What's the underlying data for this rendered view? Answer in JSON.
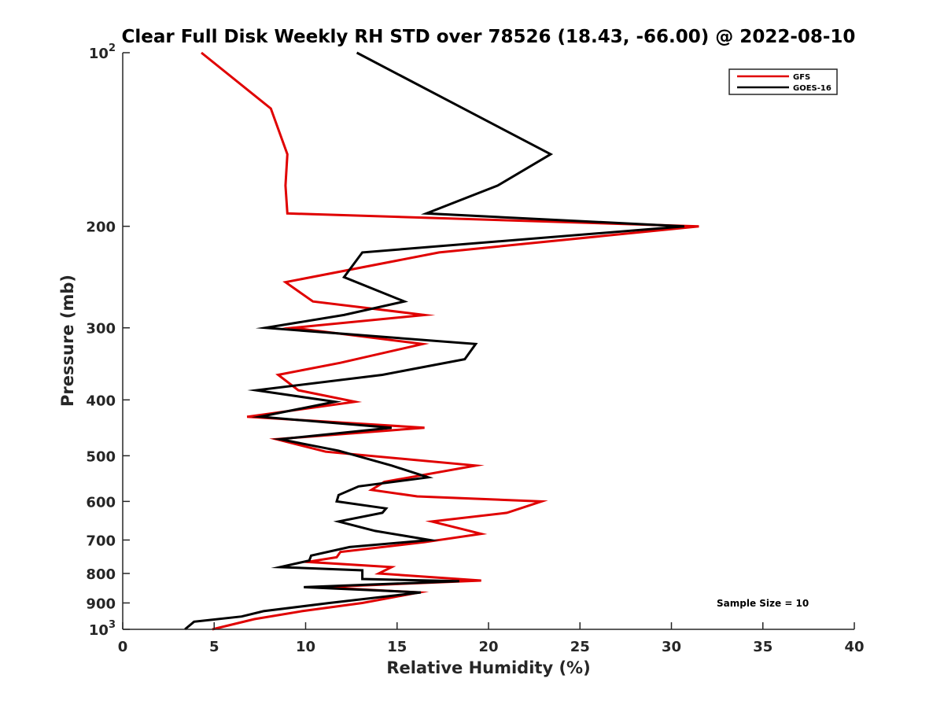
{
  "chart_data": {
    "type": "line",
    "title": "Clear Full Disk Weekly RH STD over 78526 (18.43, -66.00) @ 2022-08-10",
    "xlabel": "Relative Humidity (%)",
    "ylabel": "Pressure (mb)",
    "xlim": [
      0,
      40
    ],
    "ylim": [
      100,
      1000
    ],
    "yscale": "log",
    "y_reversed": true,
    "grid": false,
    "xticks": [
      "0",
      "5",
      "10",
      "15",
      "20",
      "25",
      "30",
      "35",
      "40"
    ],
    "yticks": [
      {
        "value": 100,
        "base": "10",
        "exp": "2"
      },
      {
        "value": 200,
        "label": "200"
      },
      {
        "value": 300,
        "label": "300"
      },
      {
        "value": 400,
        "label": "400"
      },
      {
        "value": 500,
        "label": "500"
      },
      {
        "value": 600,
        "label": "600"
      },
      {
        "value": 700,
        "label": "700"
      },
      {
        "value": 800,
        "label": "800"
      },
      {
        "value": 900,
        "label": "900"
      },
      {
        "value": 1000,
        "base": "10",
        "exp": "3"
      }
    ],
    "legend_position": "top-right",
    "series": [
      {
        "name": "GFS",
        "color": "#e00000",
        "points": [
          [
            4.3,
            100
          ],
          [
            8.1,
            125
          ],
          [
            9.0,
            150
          ],
          [
            8.9,
            170
          ],
          [
            9.0,
            190
          ],
          [
            31.5,
            200
          ],
          [
            17.3,
            222
          ],
          [
            8.9,
            250
          ],
          [
            10.4,
            270
          ],
          [
            16.5,
            285
          ],
          [
            9.3,
            300
          ],
          [
            16.4,
            320
          ],
          [
            11.9,
            345
          ],
          [
            8.5,
            362
          ],
          [
            9.6,
            385
          ],
          [
            12.7,
            403
          ],
          [
            6.8,
            428
          ],
          [
            16.5,
            447
          ],
          [
            8.4,
            468
          ],
          [
            11.1,
            492
          ],
          [
            19.3,
            520
          ],
          [
            14.3,
            555
          ],
          [
            13.6,
            573
          ],
          [
            16.1,
            588
          ],
          [
            22.9,
            600
          ],
          [
            21.0,
            628
          ],
          [
            16.9,
            650
          ],
          [
            19.6,
            683
          ],
          [
            16.5,
            706
          ],
          [
            11.9,
            734
          ],
          [
            11.7,
            750
          ],
          [
            10.1,
            764
          ],
          [
            14.7,
            780
          ],
          [
            14.0,
            800
          ],
          [
            19.6,
            823
          ],
          [
            10.8,
            845
          ],
          [
            16.2,
            863
          ],
          [
            13.1,
            900
          ],
          [
            9.8,
            930
          ],
          [
            7.2,
            960
          ],
          [
            4.9,
            1000
          ]
        ]
      },
      {
        "name": "GOES-16",
        "color": "#000000",
        "points": [
          [
            12.8,
            100
          ],
          [
            23.4,
            150
          ],
          [
            20.5,
            170
          ],
          [
            16.6,
            190
          ],
          [
            30.7,
            200
          ],
          [
            13.1,
            222
          ],
          [
            12.1,
            245
          ],
          [
            15.4,
            270
          ],
          [
            12.1,
            285
          ],
          [
            7.8,
            300
          ],
          [
            19.3,
            320
          ],
          [
            18.7,
            340
          ],
          [
            14.2,
            362
          ],
          [
            7.3,
            385
          ],
          [
            11.6,
            403
          ],
          [
            7.5,
            428
          ],
          [
            14.7,
            447
          ],
          [
            8.6,
            468
          ],
          [
            11.8,
            490
          ],
          [
            14.7,
            520
          ],
          [
            16.7,
            545
          ],
          [
            12.9,
            565
          ],
          [
            11.8,
            585
          ],
          [
            11.7,
            600
          ],
          [
            14.4,
            617
          ],
          [
            14.2,
            628
          ],
          [
            11.8,
            650
          ],
          [
            13.8,
            675
          ],
          [
            16.8,
            700
          ],
          [
            12.4,
            720
          ],
          [
            10.3,
            745
          ],
          [
            10.2,
            760
          ],
          [
            8.6,
            780
          ],
          [
            13.1,
            790
          ],
          [
            13.1,
            818
          ],
          [
            18.4,
            825
          ],
          [
            9.9,
            845
          ],
          [
            16.3,
            863
          ],
          [
            11.3,
            900
          ],
          [
            7.7,
            930
          ],
          [
            6.5,
            950
          ],
          [
            3.9,
            970
          ],
          [
            3.4,
            1000
          ]
        ]
      }
    ],
    "annotations": [
      "Sample Size = 10"
    ]
  }
}
